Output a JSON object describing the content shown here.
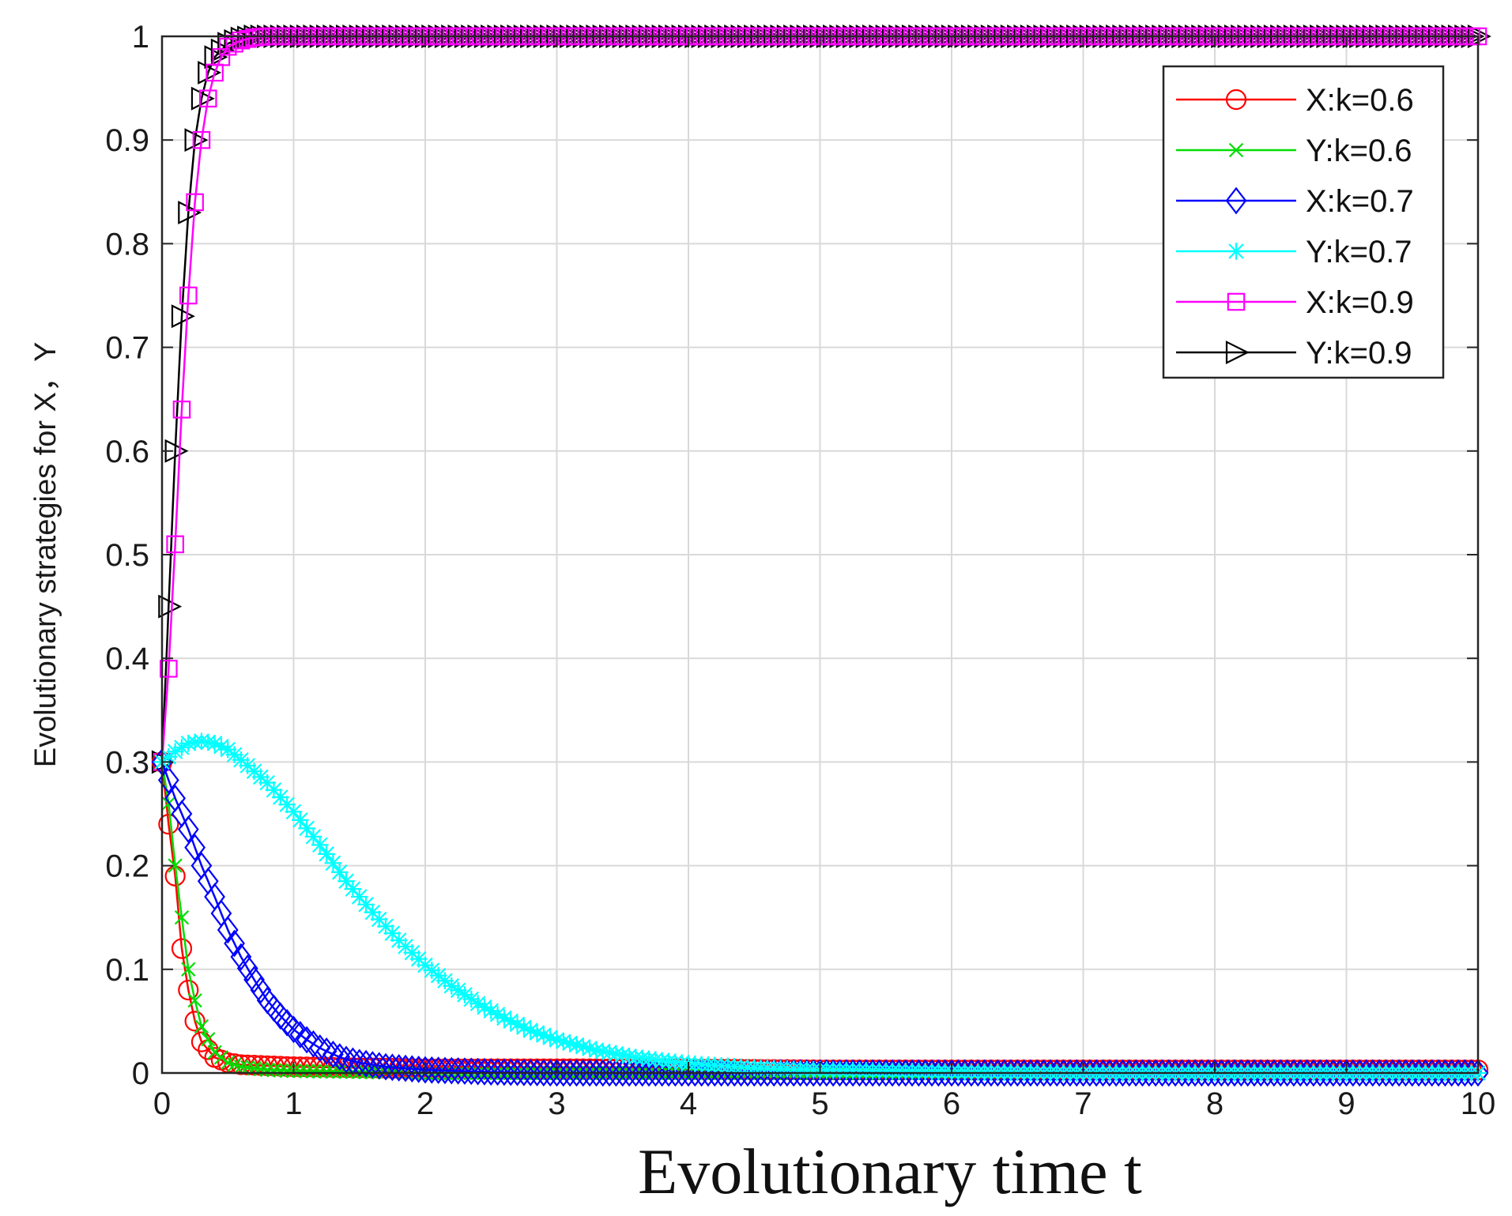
{
  "chart_data": {
    "type": "line",
    "title": "",
    "xlabel": "Evolutionary time t",
    "ylabel": "Evolutionary strategies for X，Y",
    "xlim": [
      0,
      10
    ],
    "ylim": [
      0,
      1
    ],
    "xticks": [
      0,
      1,
      2,
      3,
      4,
      5,
      6,
      7,
      8,
      9,
      10
    ],
    "yticks": [
      0,
      0.1,
      0.2,
      0.3,
      0.4,
      0.5,
      0.6,
      0.7,
      0.8,
      0.9,
      1
    ],
    "xtick_labels": [
      "0",
      "1",
      "2",
      "3",
      "4",
      "5",
      "6",
      "7",
      "8",
      "9",
      "10"
    ],
    "ytick_labels": [
      "0",
      "0.1",
      "0.2",
      "0.3",
      "0.4",
      "0.5",
      "0.6",
      "0.7",
      "0.8",
      "0.9",
      "1"
    ],
    "grid": true,
    "legend_position": "top-right",
    "series": [
      {
        "name": "X:k=0.6",
        "color": "#ff0000",
        "marker": "circle",
        "x": [
          0,
          0.05,
          0.1,
          0.15,
          0.2,
          0.25,
          0.3,
          0.4,
          0.5,
          0.6,
          0.8,
          1,
          1.5,
          2,
          3,
          4,
          5,
          6,
          7,
          8,
          9,
          10
        ],
        "y": [
          0.3,
          0.24,
          0.19,
          0.12,
          0.08,
          0.05,
          0.03,
          0.015,
          0.01,
          0.008,
          0.007,
          0.006,
          0.005,
          0.004,
          0.004,
          0.004,
          0.003,
          0.003,
          0.003,
          0.003,
          0.003,
          0.003
        ]
      },
      {
        "name": "Y:k=0.6",
        "color": "#00dd00",
        "marker": "x",
        "x": [
          0,
          0.05,
          0.1,
          0.15,
          0.2,
          0.25,
          0.3,
          0.4,
          0.5,
          0.6,
          0.8,
          1,
          1.5,
          2,
          3,
          4,
          5,
          6,
          7,
          8,
          9,
          10
        ],
        "y": [
          0.3,
          0.26,
          0.2,
          0.15,
          0.1,
          0.07,
          0.045,
          0.02,
          0.01,
          0.006,
          0.003,
          0.002,
          0.001,
          0.0,
          0.0,
          0.0,
          0.0,
          0.0,
          0.0,
          0.0,
          0.0,
          0.0
        ]
      },
      {
        "name": "X:k=0.7",
        "color": "#0000ff",
        "marker": "diamond",
        "x": [
          0,
          0.1,
          0.2,
          0.3,
          0.4,
          0.5,
          0.6,
          0.7,
          0.8,
          0.9,
          1,
          1.1,
          1.2,
          1.3,
          1.4,
          1.5,
          1.7,
          2,
          2.5,
          3,
          4,
          5,
          6,
          7,
          8,
          9,
          10
        ],
        "y": [
          0.3,
          0.265,
          0.235,
          0.2,
          0.17,
          0.138,
          0.112,
          0.09,
          0.07,
          0.055,
          0.042,
          0.032,
          0.024,
          0.018,
          0.013,
          0.01,
          0.006,
          0.003,
          0.001,
          0.0,
          0.0,
          0.0,
          0.0,
          0.0,
          0.0,
          0.0,
          0.0
        ]
      },
      {
        "name": "Y:k=0.7",
        "color": "#00ffff",
        "marker": "asterisk",
        "x": [
          0,
          0.1,
          0.2,
          0.3,
          0.4,
          0.5,
          0.6,
          0.8,
          1,
          1.2,
          1.4,
          1.6,
          1.8,
          2,
          2.2,
          2.4,
          2.6,
          2.8,
          3,
          3.3,
          3.6,
          4,
          4.5,
          5,
          5.5,
          6,
          7,
          8,
          9,
          10
        ],
        "y": [
          0.3,
          0.31,
          0.318,
          0.32,
          0.318,
          0.312,
          0.302,
          0.28,
          0.252,
          0.22,
          0.185,
          0.155,
          0.128,
          0.104,
          0.084,
          0.067,
          0.053,
          0.041,
          0.032,
          0.022,
          0.015,
          0.009,
          0.005,
          0.003,
          0.002,
          0.001,
          0.0,
          0.0,
          0.0,
          0.0
        ]
      },
      {
        "name": "X:k=0.9",
        "color": "#ff00ff",
        "marker": "square",
        "x": [
          0,
          0.05,
          0.1,
          0.15,
          0.2,
          0.25,
          0.3,
          0.35,
          0.4,
          0.45,
          0.5,
          0.6,
          0.7,
          0.8,
          1,
          1.5,
          2,
          3,
          4,
          5,
          6,
          7,
          8,
          9,
          10
        ],
        "y": [
          0.3,
          0.39,
          0.51,
          0.64,
          0.75,
          0.84,
          0.9,
          0.94,
          0.965,
          0.98,
          0.99,
          0.996,
          0.999,
          1,
          1,
          1,
          1,
          1,
          1,
          1,
          1,
          1,
          1,
          1,
          1
        ]
      },
      {
        "name": "Y:k=0.9",
        "color": "#000000",
        "marker": "triangle-right",
        "x": [
          0,
          0.05,
          0.1,
          0.15,
          0.2,
          0.25,
          0.3,
          0.35,
          0.4,
          0.5,
          0.6,
          0.7,
          0.8,
          1,
          1.5,
          2,
          3,
          4,
          5,
          6,
          7,
          8,
          9,
          10
        ],
        "y": [
          0.3,
          0.45,
          0.6,
          0.73,
          0.83,
          0.9,
          0.94,
          0.965,
          0.98,
          0.993,
          0.998,
          1,
          1,
          1,
          1,
          1,
          1,
          1,
          1,
          1,
          1,
          1,
          1,
          1
        ]
      }
    ]
  }
}
